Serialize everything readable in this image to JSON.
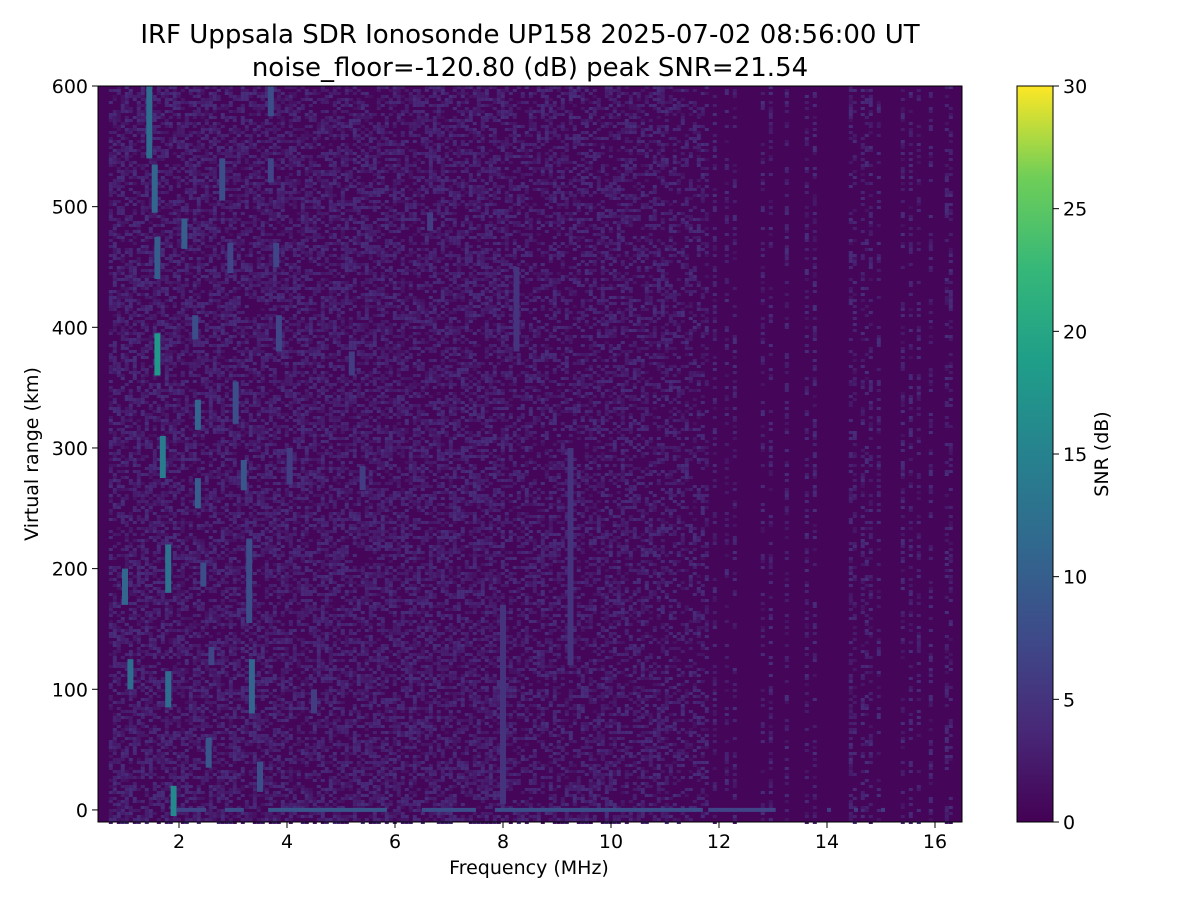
{
  "chart_data": {
    "type": "heatmap",
    "title_line1": "IRF Uppsala SDR Ionosonde UP158 2025-07-02 08:56:00  UT",
    "title_line2": "noise_floor=-120.80 (dB) peak SNR=21.54",
    "xlabel": "Frequency (MHz)",
    "ylabel": "Virtual range (km)",
    "colorbar_label": "SNR (dB)",
    "xlim": [
      0.5,
      16.5
    ],
    "ylim": [
      -10,
      600
    ],
    "xticks": [
      2,
      4,
      6,
      8,
      10,
      12,
      14,
      16
    ],
    "yticks": [
      0,
      100,
      200,
      300,
      400,
      500,
      600
    ],
    "colorbar_range": [
      0,
      30
    ],
    "colorbar_ticks": [
      0,
      5,
      10,
      15,
      20,
      25,
      30
    ],
    "colormap": "viridis",
    "noise_floor_db": -120.8,
    "peak_snr_db": 21.54,
    "background_snr": 0.5,
    "sparse_columns_above_mhz": 11.8,
    "noise_snr_range": [
      1.5,
      4.5
    ],
    "echo_traces": [
      {
        "f": 1.0,
        "r0": 170,
        "r1": 200,
        "snr": 11
      },
      {
        "f": 1.1,
        "r0": 100,
        "r1": 125,
        "snr": 12
      },
      {
        "f": 1.45,
        "r0": 540,
        "r1": 600,
        "snr": 12
      },
      {
        "f": 1.55,
        "r0": 495,
        "r1": 535,
        "snr": 11
      },
      {
        "f": 1.6,
        "r0": 440,
        "r1": 475,
        "snr": 10
      },
      {
        "f": 1.6,
        "r0": 360,
        "r1": 395,
        "snr": 18
      },
      {
        "f": 1.7,
        "r0": 275,
        "r1": 310,
        "snr": 14
      },
      {
        "f": 1.8,
        "r0": 180,
        "r1": 220,
        "snr": 13
      },
      {
        "f": 1.8,
        "r0": 85,
        "r1": 115,
        "snr": 12
      },
      {
        "f": 1.9,
        "r0": -5,
        "r1": 20,
        "snr": 16
      },
      {
        "f": 2.1,
        "r0": 465,
        "r1": 490,
        "snr": 10
      },
      {
        "f": 2.3,
        "r0": 390,
        "r1": 410,
        "snr": 8
      },
      {
        "f": 2.35,
        "r0": 315,
        "r1": 340,
        "snr": 11
      },
      {
        "f": 2.35,
        "r0": 250,
        "r1": 275,
        "snr": 10
      },
      {
        "f": 2.45,
        "r0": 185,
        "r1": 205,
        "snr": 8
      },
      {
        "f": 2.55,
        "r0": 35,
        "r1": 60,
        "snr": 9
      },
      {
        "f": 2.6,
        "r0": 120,
        "r1": 135,
        "snr": 7
      },
      {
        "f": 2.8,
        "r0": 505,
        "r1": 540,
        "snr": 8
      },
      {
        "f": 2.95,
        "r0": 445,
        "r1": 470,
        "snr": 7
      },
      {
        "f": 3.05,
        "r0": 320,
        "r1": 355,
        "snr": 8
      },
      {
        "f": 3.2,
        "r0": 265,
        "r1": 290,
        "snr": 9
      },
      {
        "f": 3.3,
        "r0": 155,
        "r1": 225,
        "snr": 8
      },
      {
        "f": 3.35,
        "r0": 80,
        "r1": 125,
        "snr": 11
      },
      {
        "f": 3.5,
        "r0": 15,
        "r1": 40,
        "snr": 8
      },
      {
        "f": 3.7,
        "r0": 575,
        "r1": 600,
        "snr": 8
      },
      {
        "f": 3.7,
        "r0": 520,
        "r1": 540,
        "snr": 7
      },
      {
        "f": 3.8,
        "r0": 450,
        "r1": 470,
        "snr": 7
      },
      {
        "f": 3.85,
        "r0": 380,
        "r1": 410,
        "snr": 7
      },
      {
        "f": 4.05,
        "r0": 270,
        "r1": 300,
        "snr": 6
      },
      {
        "f": 4.5,
        "r0": 80,
        "r1": 100,
        "snr": 6
      },
      {
        "f": 5.2,
        "r0": 360,
        "r1": 380,
        "snr": 6
      },
      {
        "f": 5.4,
        "r0": 265,
        "r1": 285,
        "snr": 6
      },
      {
        "f": 6.65,
        "r0": 480,
        "r1": 495,
        "snr": 6
      },
      {
        "f": 8.0,
        "r0": 5,
        "r1": 170,
        "snr": 5
      },
      {
        "f": 8.25,
        "r0": 380,
        "r1": 450,
        "snr": 5
      },
      {
        "f": 9.25,
        "r0": 120,
        "r1": 300,
        "snr": 5
      }
    ],
    "ground_trace": {
      "range_km": 0,
      "segments": [
        {
          "f0": 1.95,
          "f1": 2.5,
          "snr": 7
        },
        {
          "f0": 2.85,
          "f1": 3.2,
          "snr": 8
        },
        {
          "f0": 3.65,
          "f1": 5.85,
          "snr": 9
        },
        {
          "f0": 6.5,
          "f1": 7.5,
          "snr": 8
        },
        {
          "f0": 7.85,
          "f1": 11.7,
          "snr": 8
        },
        {
          "f0": 11.8,
          "f1": 13.05,
          "snr": 7
        },
        {
          "f0": 14.0,
          "f1": 14.05,
          "snr": 6
        },
        {
          "f0": 14.5,
          "f1": 14.55,
          "snr": 6
        },
        {
          "f0": 15.0,
          "f1": 15.05,
          "snr": 6
        }
      ]
    }
  }
}
